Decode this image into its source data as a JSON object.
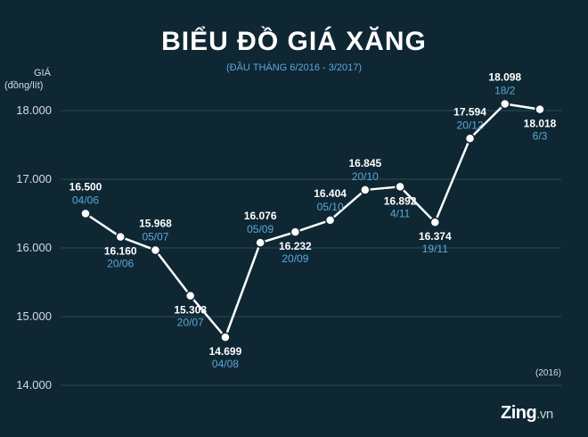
{
  "title": "BIỂU ĐỒ GIÁ XĂNG",
  "subtitle": "(ĐẦU THÁNG 6/2016 - 3/2017)",
  "footnote": "(2016)",
  "logo": {
    "name": "Zing",
    "domain": ".vn"
  },
  "colors": {
    "background": "#0e2733",
    "line": "#ffffff",
    "value_label": "#ffffff",
    "date_label": "#5ea7d6",
    "grid": "#2f4855",
    "axis_text": "#d6dde2"
  },
  "chart_data": {
    "type": "line",
    "title": "BIỂU ĐỒ GIÁ XĂNG",
    "subtitle": "(ĐẦU THÁNG 6/2016 - 3/2017)",
    "ylabel": [
      "GIÁ",
      "(đồng/lít)"
    ],
    "ylim": [
      14000,
      18000
    ],
    "yticks": [
      14000,
      15000,
      16000,
      17000,
      18000
    ],
    "ytick_labels": [
      "14.000",
      "15.000",
      "16.000",
      "17.000",
      "18.000"
    ],
    "grid": true,
    "points": [
      {
        "date": "04/06",
        "value": 16500,
        "value_label": "16.500",
        "label_pos": "above"
      },
      {
        "date": "20/06",
        "value": 16160,
        "value_label": "16.160",
        "label_pos": "below"
      },
      {
        "date": "05/07",
        "value": 15968,
        "value_label": "15.968",
        "label_pos": "above"
      },
      {
        "date": "20/07",
        "value": 15303,
        "value_label": "15.303",
        "label_pos": "below"
      },
      {
        "date": "04/08",
        "value": 14699,
        "value_label": "14.699",
        "label_pos": "below"
      },
      {
        "date": "05/09",
        "value": 16076,
        "value_label": "16.076",
        "label_pos": "above"
      },
      {
        "date": "20/09",
        "value": 16232,
        "value_label": "16.232",
        "label_pos": "below"
      },
      {
        "date": "05/10",
        "value": 16404,
        "value_label": "16.404",
        "label_pos": "above"
      },
      {
        "date": "20/10",
        "value": 16845,
        "value_label": "16.845",
        "label_pos": "above"
      },
      {
        "date": "4/11",
        "value": 16892,
        "value_label": "16.892",
        "label_pos": "below"
      },
      {
        "date": "19/11",
        "value": 16374,
        "value_label": "16.374",
        "label_pos": "below"
      },
      {
        "date": "20/12",
        "value": 17594,
        "value_label": "17.594",
        "label_pos": "above"
      },
      {
        "date": "18/2",
        "value": 18098,
        "value_label": "18.098",
        "label_pos": "above"
      },
      {
        "date": "6/3",
        "value": 18018,
        "value_label": "18.018",
        "label_pos": "below"
      }
    ]
  }
}
